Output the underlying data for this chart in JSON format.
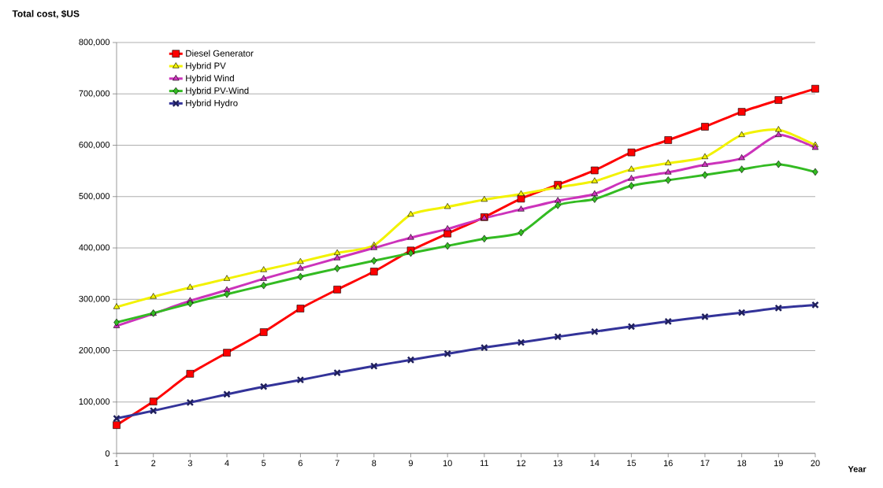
{
  "chart_data": {
    "type": "line",
    "ylabel": "Total cost, $US",
    "xlabel": "Year",
    "categories": [
      "1",
      "2",
      "3",
      "4",
      "5",
      "6",
      "7",
      "8",
      "9",
      "10",
      "11",
      "12",
      "13",
      "14",
      "15",
      "16",
      "17",
      "18",
      "19",
      "20"
    ],
    "series": [
      {
        "name": "Diesel Generator",
        "color": "#ff0000",
        "marker": "square",
        "values": [
          55000,
          101000,
          155000,
          196000,
          236000,
          282000,
          319000,
          354000,
          395000,
          428000,
          460000,
          496000,
          523000,
          551000,
          586000,
          610000,
          636000,
          665000,
          688000,
          710000
        ]
      },
      {
        "name": "Hybrid PV",
        "color": "#f2f200",
        "marker": "triangle",
        "values": [
          285000,
          305000,
          323000,
          340000,
          357000,
          373000,
          390000,
          405000,
          465000,
          480000,
          494000,
          505000,
          518000,
          530000,
          553000,
          565000,
          577000,
          620000,
          630000,
          600000
        ]
      },
      {
        "name": "Hybrid Wind",
        "color": "#cc33bb",
        "marker": "triangle",
        "values": [
          248000,
          272000,
          297000,
          318000,
          340000,
          360000,
          380000,
          400000,
          420000,
          437000,
          458000,
          475000,
          492000,
          505000,
          535000,
          547000,
          562000,
          575000,
          620000,
          595000
        ]
      },
      {
        "name": "Hybrid PV-Wind",
        "color": "#33bb22",
        "marker": "diamond",
        "values": [
          255000,
          273000,
          292000,
          310000,
          327000,
          344000,
          360000,
          375000,
          390000,
          404000,
          418000,
          430000,
          483000,
          495000,
          521000,
          532000,
          542000,
          553000,
          563000,
          548000
        ]
      },
      {
        "name": "Hybrid Hydro",
        "color": "#333399",
        "marker": "cross",
        "values": [
          68000,
          83000,
          99000,
          115000,
          130000,
          143000,
          157000,
          170000,
          182000,
          194000,
          206000,
          216000,
          227000,
          237000,
          247000,
          257000,
          266000,
          274000,
          283000,
          289000
        ]
      }
    ],
    "ylim": [
      0,
      800000
    ],
    "yticks": [
      0,
      {
        "value": 100000,
        "label": "100,000"
      },
      {
        "value": 200000,
        "label": "200,000"
      },
      {
        "value": 300000,
        "label": "300,000"
      },
      {
        "value": 400000,
        "label": "400,000"
      },
      {
        "value": 500000,
        "label": "500,000"
      },
      {
        "value": 600000,
        "label": "600,000"
      },
      {
        "value": 700000,
        "label": "700,000"
      },
      {
        "value": 800000,
        "label": "800,000"
      }
    ],
    "grid": "y",
    "legend": "top left",
    "line_style": "solid"
  }
}
